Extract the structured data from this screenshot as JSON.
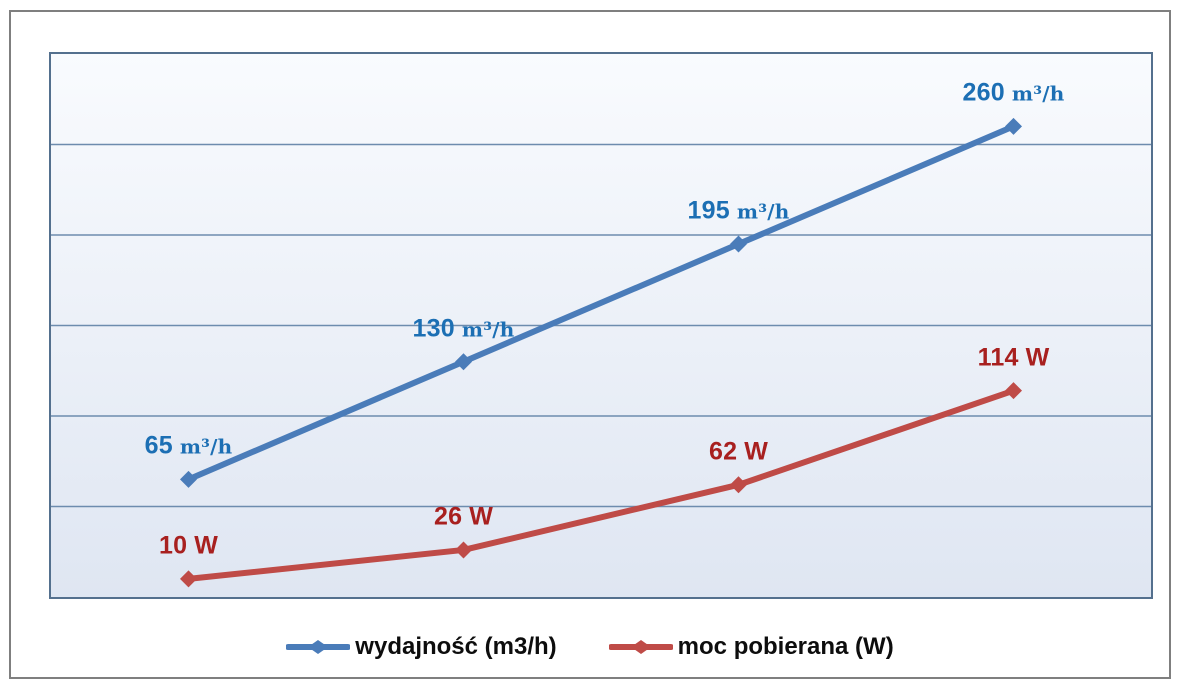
{
  "chart_data": {
    "type": "line",
    "title": "",
    "x_points": 4,
    "x_tick_labels_visible": false,
    "y_tick_labels_visible": false,
    "ylim": [
      0,
      300
    ],
    "gridline_step": 50,
    "grid": "horizontal",
    "legend_position": "bottom-center",
    "series": [
      {
        "name": "wydajność (m3/h)",
        "unit": "m³/h",
        "values": [
          65,
          130,
          195,
          260
        ],
        "point_labels": [
          "65 m³/h",
          "130 m³/h",
          "195 m³/h",
          "260 m³/h"
        ],
        "color": "#4a7cb9",
        "label_color": "#1c6fb4",
        "marker": "diamond"
      },
      {
        "name": "moc pobierana (W)",
        "unit": "W",
        "values": [
          10,
          26,
          62,
          114
        ],
        "point_labels": [
          "10 W",
          "26 W",
          "62 W",
          "114 W"
        ],
        "color": "#bf4b47",
        "label_color": "#a8201f",
        "marker": "diamond"
      }
    ]
  },
  "colors": {
    "outer_border": "#7f7f7f",
    "plot_border": "#54708e",
    "gridline": "#6d8cae",
    "plot_bg_top": "#f9fbfe",
    "plot_bg_bottom": "#dfe6f2",
    "legend_text": "#0d0d0d"
  }
}
